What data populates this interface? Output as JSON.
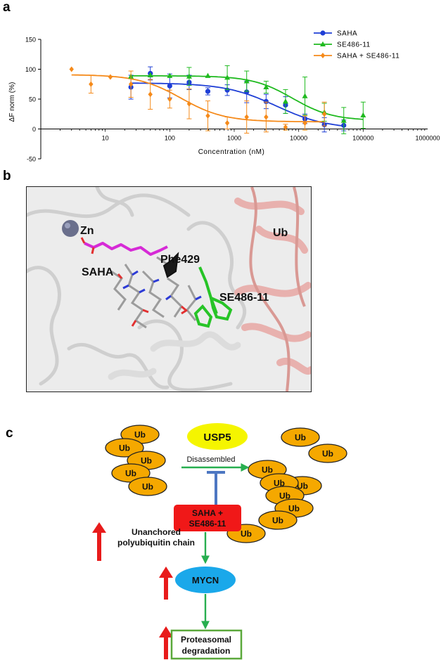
{
  "panels": {
    "a": "a",
    "b": "b",
    "c": "c"
  },
  "chart_data": {
    "type": "scatter",
    "xscale": "log",
    "xlabel": "Concentration (nM)",
    "ylabel": "ΔF norm (%)",
    "xlim": [
      1,
      1000000
    ],
    "ylim": [
      -50,
      150
    ],
    "xticks": [
      "10",
      "100",
      "1000",
      "10000",
      "100000",
      "1000000"
    ],
    "yticks": [
      "-50",
      "0",
      "50",
      "100",
      "150"
    ],
    "legend_position": "top-right",
    "series": [
      {
        "name": "SAHA",
        "color": "#1f3fd6",
        "marker": "circle",
        "points": [
          {
            "x": 25,
            "y": 70,
            "err": 20
          },
          {
            "x": 50,
            "y": 93,
            "err": 11
          },
          {
            "x": 100,
            "y": 72,
            "err": 20
          },
          {
            "x": 200,
            "y": 78,
            "err": 12
          },
          {
            "x": 390,
            "y": 63,
            "err": 6
          },
          {
            "x": 780,
            "y": 65,
            "err": 9
          },
          {
            "x": 1560,
            "y": 62,
            "err": 18
          },
          {
            "x": 3125,
            "y": 46,
            "err": 12
          },
          {
            "x": 6250,
            "y": 40,
            "err": 14
          },
          {
            "x": 12500,
            "y": 17,
            "err": 8
          },
          {
            "x": 25000,
            "y": 7,
            "err": 12
          },
          {
            "x": 50000,
            "y": 6,
            "err": 9
          }
        ],
        "fit": {
          "top": 77,
          "bottom": 0,
          "ec50": 4500,
          "hill": 1.1
        }
      },
      {
        "name": "SE486-11",
        "color": "#1fba1f",
        "marker": "triangle",
        "points": [
          {
            "x": 25,
            "y": 88,
            "err": 0
          },
          {
            "x": 50,
            "y": 90,
            "err": 0
          },
          {
            "x": 100,
            "y": 89,
            "err": 0
          },
          {
            "x": 200,
            "y": 88,
            "err": 15
          },
          {
            "x": 390,
            "y": 89,
            "err": 0
          },
          {
            "x": 780,
            "y": 86,
            "err": 20
          },
          {
            "x": 1560,
            "y": 80,
            "err": 17
          },
          {
            "x": 3125,
            "y": 70,
            "err": 10
          },
          {
            "x": 6250,
            "y": 46,
            "err": 20
          },
          {
            "x": 12500,
            "y": 55,
            "err": 32
          },
          {
            "x": 25000,
            "y": 28,
            "err": 15
          },
          {
            "x": 50000,
            "y": 14,
            "err": 22
          },
          {
            "x": 100000,
            "y": 23,
            "err": 22
          }
        ],
        "fit": {
          "top": 89,
          "bottom": 14,
          "ec50": 8000,
          "hill": 1.4
        }
      },
      {
        "name": "SAHA + SE486-11",
        "color": "#f58a1a",
        "marker": "diamond",
        "points": [
          {
            "x": 3,
            "y": 100,
            "err": 0
          },
          {
            "x": 6,
            "y": 75,
            "err": 15
          },
          {
            "x": 12,
            "y": 87,
            "err": 0
          },
          {
            "x": 25,
            "y": 75,
            "err": 22
          },
          {
            "x": 50,
            "y": 58,
            "err": 25
          },
          {
            "x": 100,
            "y": 50,
            "err": 15
          },
          {
            "x": 200,
            "y": 42,
            "err": 25
          },
          {
            "x": 390,
            "y": 22,
            "err": 25
          },
          {
            "x": 780,
            "y": 10,
            "err": 10
          },
          {
            "x": 1560,
            "y": 20,
            "err": 27
          },
          {
            "x": 3125,
            "y": 20,
            "err": 25
          },
          {
            "x": 6250,
            "y": 3,
            "err": 5
          },
          {
            "x": 12500,
            "y": 10,
            "err": 12
          },
          {
            "x": 25000,
            "y": 25,
            "err": 20
          }
        ],
        "fit": {
          "top": 91,
          "bottom": 12,
          "ec50": 150,
          "hill": 1.3
        }
      }
    ]
  },
  "structure": {
    "labels": {
      "zn": "Zn",
      "saha": "SAHA",
      "phe": "Phe429",
      "se": "SE486-11",
      "ub": "Ub"
    }
  },
  "scheme": {
    "usp5": "USP5",
    "disassembled": "Disassembled",
    "inhibitor_line1": "SAHA +",
    "inhibitor_line2": "SE486-11",
    "chain_line1": "Unanchored",
    "chain_line2": "polyubiquitin chain",
    "mycn": "MYCN",
    "degr_line1": "Proteasomal",
    "degr_line2": "degradation",
    "ub": "Ub",
    "colors": {
      "ub": "#f5a800",
      "usp5": "#f5f500",
      "inhibitor": "#f01818",
      "mycn": "#1aa8ea",
      "arrow": "#27ae4f",
      "inhibit": "#4d77c2",
      "up_arrow": "#e81b1b",
      "degr_border": "#5aa83a"
    }
  }
}
